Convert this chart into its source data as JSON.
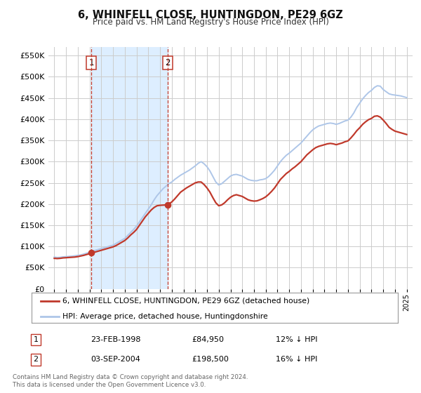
{
  "title": "6, WHINFELL CLOSE, HUNTINGDON, PE29 6GZ",
  "subtitle": "Price paid vs. HM Land Registry's House Price Index (HPI)",
  "legend_entry1": "6, WHINFELL CLOSE, HUNTINGDON, PE29 6GZ (detached house)",
  "legend_entry2": "HPI: Average price, detached house, Huntingdonshire",
  "annotation1_date": "23-FEB-1998",
  "annotation1_price": "£84,950",
  "annotation1_hpi": "12% ↓ HPI",
  "annotation2_date": "03-SEP-2004",
  "annotation2_price": "£198,500",
  "annotation2_hpi": "16% ↓ HPI",
  "footnote1": "Contains HM Land Registry data © Crown copyright and database right 2024.",
  "footnote2": "This data is licensed under the Open Government Licence v3.0.",
  "transaction1_year": 1998.14,
  "transaction1_value": 84950,
  "transaction2_year": 2004.67,
  "transaction2_value": 198500,
  "ylim_min": 0,
  "ylim_max": 570000,
  "xlim_min": 1994.5,
  "xlim_max": 2025.5,
  "hpi_color": "#aec6e8",
  "price_color": "#c0392b",
  "shade_color": "#ddeeff",
  "grid_color": "#cccccc",
  "background_color": "#ffffff",
  "hpi_data": [
    [
      1995.0,
      75000
    ],
    [
      1995.25,
      74000
    ],
    [
      1995.5,
      74500
    ],
    [
      1995.75,
      75500
    ],
    [
      1996.0,
      76000
    ],
    [
      1996.25,
      76500
    ],
    [
      1996.5,
      77000
    ],
    [
      1996.75,
      78000
    ],
    [
      1997.0,
      79000
    ],
    [
      1997.25,
      80000
    ],
    [
      1997.5,
      82000
    ],
    [
      1997.75,
      84000
    ],
    [
      1998.0,
      86000
    ],
    [
      1998.25,
      89000
    ],
    [
      1998.5,
      91000
    ],
    [
      1998.75,
      93000
    ],
    [
      1999.0,
      95000
    ],
    [
      1999.25,
      97000
    ],
    [
      1999.5,
      99000
    ],
    [
      1999.75,
      101000
    ],
    [
      2000.0,
      103000
    ],
    [
      2000.25,
      107000
    ],
    [
      2000.5,
      111000
    ],
    [
      2000.75,
      115000
    ],
    [
      2001.0,
      119000
    ],
    [
      2001.25,
      126000
    ],
    [
      2001.5,
      133000
    ],
    [
      2001.75,
      140000
    ],
    [
      2002.0,
      148000
    ],
    [
      2002.25,
      158000
    ],
    [
      2002.5,
      168000
    ],
    [
      2002.75,
      178000
    ],
    [
      2003.0,
      188000
    ],
    [
      2003.25,
      198000
    ],
    [
      2003.5,
      210000
    ],
    [
      2003.75,
      220000
    ],
    [
      2004.0,
      228000
    ],
    [
      2004.25,
      236000
    ],
    [
      2004.5,
      242000
    ],
    [
      2004.75,
      248000
    ],
    [
      2005.0,
      252000
    ],
    [
      2005.25,
      258000
    ],
    [
      2005.5,
      263000
    ],
    [
      2005.75,
      268000
    ],
    [
      2006.0,
      272000
    ],
    [
      2006.25,
      276000
    ],
    [
      2006.5,
      280000
    ],
    [
      2006.75,
      285000
    ],
    [
      2007.0,
      290000
    ],
    [
      2007.25,
      296000
    ],
    [
      2007.5,
      300000
    ],
    [
      2007.75,
      295000
    ],
    [
      2008.0,
      288000
    ],
    [
      2008.25,
      278000
    ],
    [
      2008.5,
      265000
    ],
    [
      2008.75,
      252000
    ],
    [
      2009.0,
      245000
    ],
    [
      2009.25,
      248000
    ],
    [
      2009.5,
      254000
    ],
    [
      2009.75,
      260000
    ],
    [
      2010.0,
      266000
    ],
    [
      2010.25,
      269000
    ],
    [
      2010.5,
      270000
    ],
    [
      2010.75,
      268000
    ],
    [
      2011.0,
      266000
    ],
    [
      2011.25,
      262000
    ],
    [
      2011.5,
      258000
    ],
    [
      2011.75,
      256000
    ],
    [
      2012.0,
      255000
    ],
    [
      2012.25,
      255000
    ],
    [
      2012.5,
      257000
    ],
    [
      2012.75,
      258000
    ],
    [
      2013.0,
      260000
    ],
    [
      2013.25,
      265000
    ],
    [
      2013.5,
      272000
    ],
    [
      2013.75,
      280000
    ],
    [
      2014.0,
      290000
    ],
    [
      2014.25,
      300000
    ],
    [
      2014.5,
      308000
    ],
    [
      2014.75,
      315000
    ],
    [
      2015.0,
      320000
    ],
    [
      2015.25,
      326000
    ],
    [
      2015.5,
      332000
    ],
    [
      2015.75,
      338000
    ],
    [
      2016.0,
      344000
    ],
    [
      2016.25,
      352000
    ],
    [
      2016.5,
      360000
    ],
    [
      2016.75,
      368000
    ],
    [
      2017.0,
      375000
    ],
    [
      2017.25,
      380000
    ],
    [
      2017.5,
      384000
    ],
    [
      2017.75,
      386000
    ],
    [
      2018.0,
      388000
    ],
    [
      2018.25,
      390000
    ],
    [
      2018.5,
      391000
    ],
    [
      2018.75,
      390000
    ],
    [
      2019.0,
      388000
    ],
    [
      2019.25,
      390000
    ],
    [
      2019.5,
      393000
    ],
    [
      2019.75,
      396000
    ],
    [
      2020.0,
      398000
    ],
    [
      2020.25,
      405000
    ],
    [
      2020.5,
      415000
    ],
    [
      2020.75,
      428000
    ],
    [
      2021.0,
      438000
    ],
    [
      2021.25,
      448000
    ],
    [
      2021.5,
      456000
    ],
    [
      2021.75,
      463000
    ],
    [
      2022.0,
      468000
    ],
    [
      2022.25,
      475000
    ],
    [
      2022.5,
      479000
    ],
    [
      2022.75,
      478000
    ],
    [
      2023.0,
      470000
    ],
    [
      2023.25,
      465000
    ],
    [
      2023.5,
      460000
    ],
    [
      2023.75,
      458000
    ],
    [
      2024.0,
      457000
    ],
    [
      2024.25,
      456000
    ],
    [
      2024.5,
      455000
    ],
    [
      2024.75,
      453000
    ],
    [
      2025.0,
      451000
    ]
  ],
  "price_data": [
    [
      1995.0,
      72000
    ],
    [
      1995.25,
      71500
    ],
    [
      1995.5,
      72000
    ],
    [
      1995.75,
      73000
    ],
    [
      1996.0,
      73500
    ],
    [
      1996.25,
      74000
    ],
    [
      1996.5,
      74500
    ],
    [
      1996.75,
      75000
    ],
    [
      1997.0,
      76000
    ],
    [
      1997.25,
      77500
    ],
    [
      1997.5,
      79000
    ],
    [
      1997.75,
      81000
    ],
    [
      1998.0,
      83000
    ],
    [
      1998.14,
      84950
    ],
    [
      1998.25,
      85500
    ],
    [
      1998.5,
      87000
    ],
    [
      1998.75,
      89000
    ],
    [
      1999.0,
      91000
    ],
    [
      1999.25,
      93000
    ],
    [
      1999.5,
      95000
    ],
    [
      1999.75,
      97000
    ],
    [
      2000.0,
      99000
    ],
    [
      2000.25,
      102000
    ],
    [
      2000.5,
      106000
    ],
    [
      2000.75,
      110000
    ],
    [
      2001.0,
      114000
    ],
    [
      2001.25,
      120000
    ],
    [
      2001.5,
      127000
    ],
    [
      2001.75,
      133000
    ],
    [
      2002.0,
      140000
    ],
    [
      2002.25,
      150000
    ],
    [
      2002.5,
      160000
    ],
    [
      2002.75,
      170000
    ],
    [
      2003.0,
      178000
    ],
    [
      2003.25,
      186000
    ],
    [
      2003.5,
      192000
    ],
    [
      2003.75,
      196000
    ],
    [
      2004.0,
      197000
    ],
    [
      2004.25,
      197500
    ],
    [
      2004.5,
      198000
    ],
    [
      2004.67,
      198500
    ],
    [
      2004.75,
      200000
    ],
    [
      2005.0,
      205000
    ],
    [
      2005.25,
      212000
    ],
    [
      2005.5,
      220000
    ],
    [
      2005.75,
      228000
    ],
    [
      2006.0,
      233000
    ],
    [
      2006.25,
      238000
    ],
    [
      2006.5,
      242000
    ],
    [
      2006.75,
      246000
    ],
    [
      2007.0,
      250000
    ],
    [
      2007.25,
      252000
    ],
    [
      2007.5,
      252000
    ],
    [
      2007.75,
      246000
    ],
    [
      2008.0,
      238000
    ],
    [
      2008.25,
      228000
    ],
    [
      2008.5,
      215000
    ],
    [
      2008.75,
      203000
    ],
    [
      2009.0,
      196000
    ],
    [
      2009.25,
      198000
    ],
    [
      2009.5,
      203000
    ],
    [
      2009.75,
      210000
    ],
    [
      2010.0,
      216000
    ],
    [
      2010.25,
      220000
    ],
    [
      2010.5,
      222000
    ],
    [
      2010.75,
      220000
    ],
    [
      2011.0,
      218000
    ],
    [
      2011.25,
      214000
    ],
    [
      2011.5,
      210000
    ],
    [
      2011.75,
      208000
    ],
    [
      2012.0,
      207000
    ],
    [
      2012.25,
      207500
    ],
    [
      2012.5,
      210000
    ],
    [
      2012.75,
      213000
    ],
    [
      2013.0,
      217000
    ],
    [
      2013.25,
      223000
    ],
    [
      2013.5,
      230000
    ],
    [
      2013.75,
      238000
    ],
    [
      2014.0,
      248000
    ],
    [
      2014.25,
      258000
    ],
    [
      2014.5,
      265000
    ],
    [
      2014.75,
      272000
    ],
    [
      2015.0,
      277000
    ],
    [
      2015.25,
      283000
    ],
    [
      2015.5,
      288000
    ],
    [
      2015.75,
      294000
    ],
    [
      2016.0,
      300000
    ],
    [
      2016.25,
      308000
    ],
    [
      2016.5,
      316000
    ],
    [
      2016.75,
      322000
    ],
    [
      2017.0,
      328000
    ],
    [
      2017.25,
      333000
    ],
    [
      2017.5,
      336000
    ],
    [
      2017.75,
      338000
    ],
    [
      2018.0,
      340000
    ],
    [
      2018.25,
      342000
    ],
    [
      2018.5,
      343000
    ],
    [
      2018.75,
      342000
    ],
    [
      2019.0,
      340000
    ],
    [
      2019.25,
      342000
    ],
    [
      2019.5,
      344000
    ],
    [
      2019.75,
      347000
    ],
    [
      2020.0,
      349000
    ],
    [
      2020.25,
      356000
    ],
    [
      2020.5,
      364000
    ],
    [
      2020.75,
      373000
    ],
    [
      2021.0,
      380000
    ],
    [
      2021.25,
      388000
    ],
    [
      2021.5,
      394000
    ],
    [
      2021.75,
      399000
    ],
    [
      2022.0,
      402000
    ],
    [
      2022.25,
      407000
    ],
    [
      2022.5,
      408000
    ],
    [
      2022.75,
      405000
    ],
    [
      2023.0,
      398000
    ],
    [
      2023.25,
      390000
    ],
    [
      2023.5,
      381000
    ],
    [
      2023.75,
      376000
    ],
    [
      2024.0,
      372000
    ],
    [
      2024.25,
      370000
    ],
    [
      2024.5,
      368000
    ],
    [
      2024.75,
      366000
    ],
    [
      2025.0,
      364000
    ]
  ]
}
